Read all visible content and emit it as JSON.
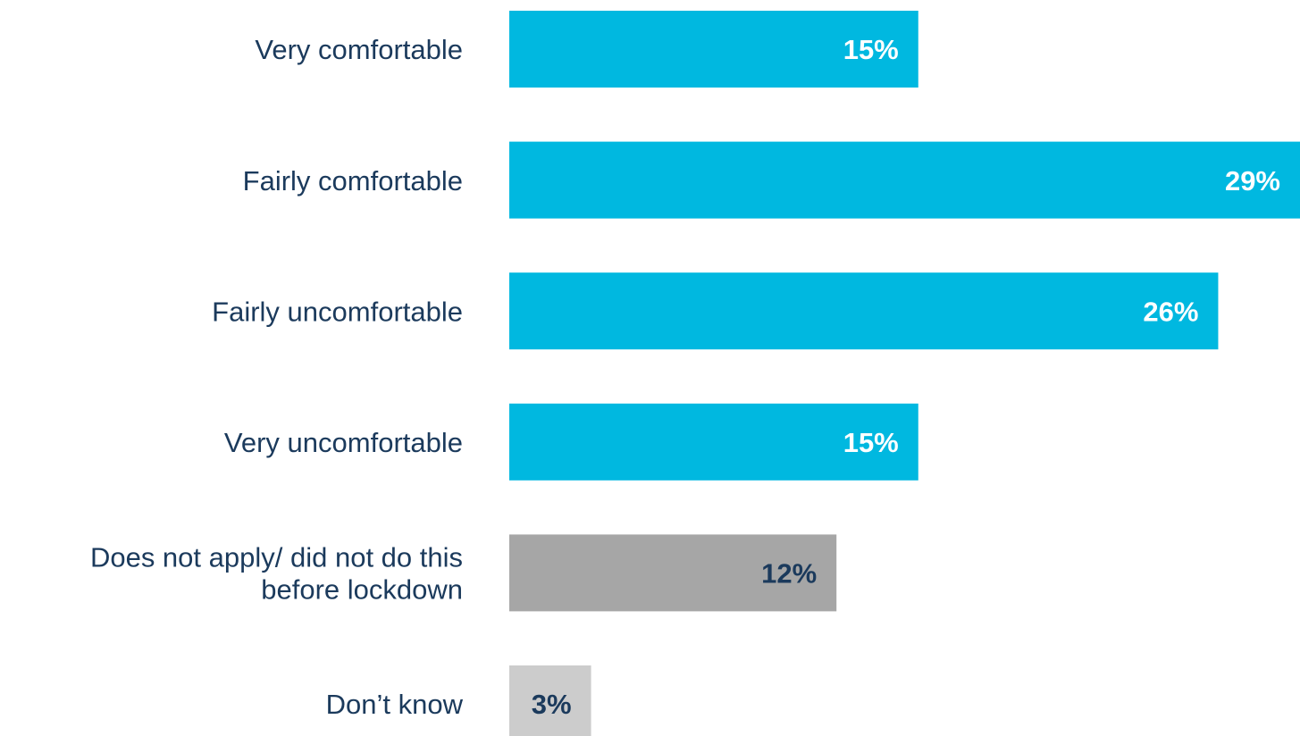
{
  "chart_data": {
    "type": "bar",
    "orientation": "horizontal",
    "categories": [
      [
        "Very comfortable"
      ],
      [
        "Fairly comfortable"
      ],
      [
        "Fairly uncomfortable"
      ],
      [
        "Very uncomfortable"
      ],
      [
        "Does not apply/ did not do this",
        "before lockdown"
      ],
      [
        "Don’t know"
      ]
    ],
    "values": [
      15,
      29,
      26,
      15,
      12,
      3
    ],
    "value_labels": [
      "15%",
      "29%",
      "26%",
      "15%",
      "12%",
      "3%"
    ],
    "unit": "%",
    "bar_colors": [
      "#00b8e0",
      "#00b8e0",
      "#00b8e0",
      "#00b8e0",
      "#a6a6a6",
      "#cccccc"
    ],
    "value_label_colors": [
      "#ffffff",
      "#ffffff",
      "#ffffff",
      "#ffffff",
      "#1b3a5c",
      "#1b3a5c"
    ],
    "category_label_color": "#1b3a5c",
    "xlim": [
      0,
      29
    ],
    "grid": false,
    "legend": "none",
    "title": "",
    "xlabel": "",
    "ylabel": ""
  }
}
